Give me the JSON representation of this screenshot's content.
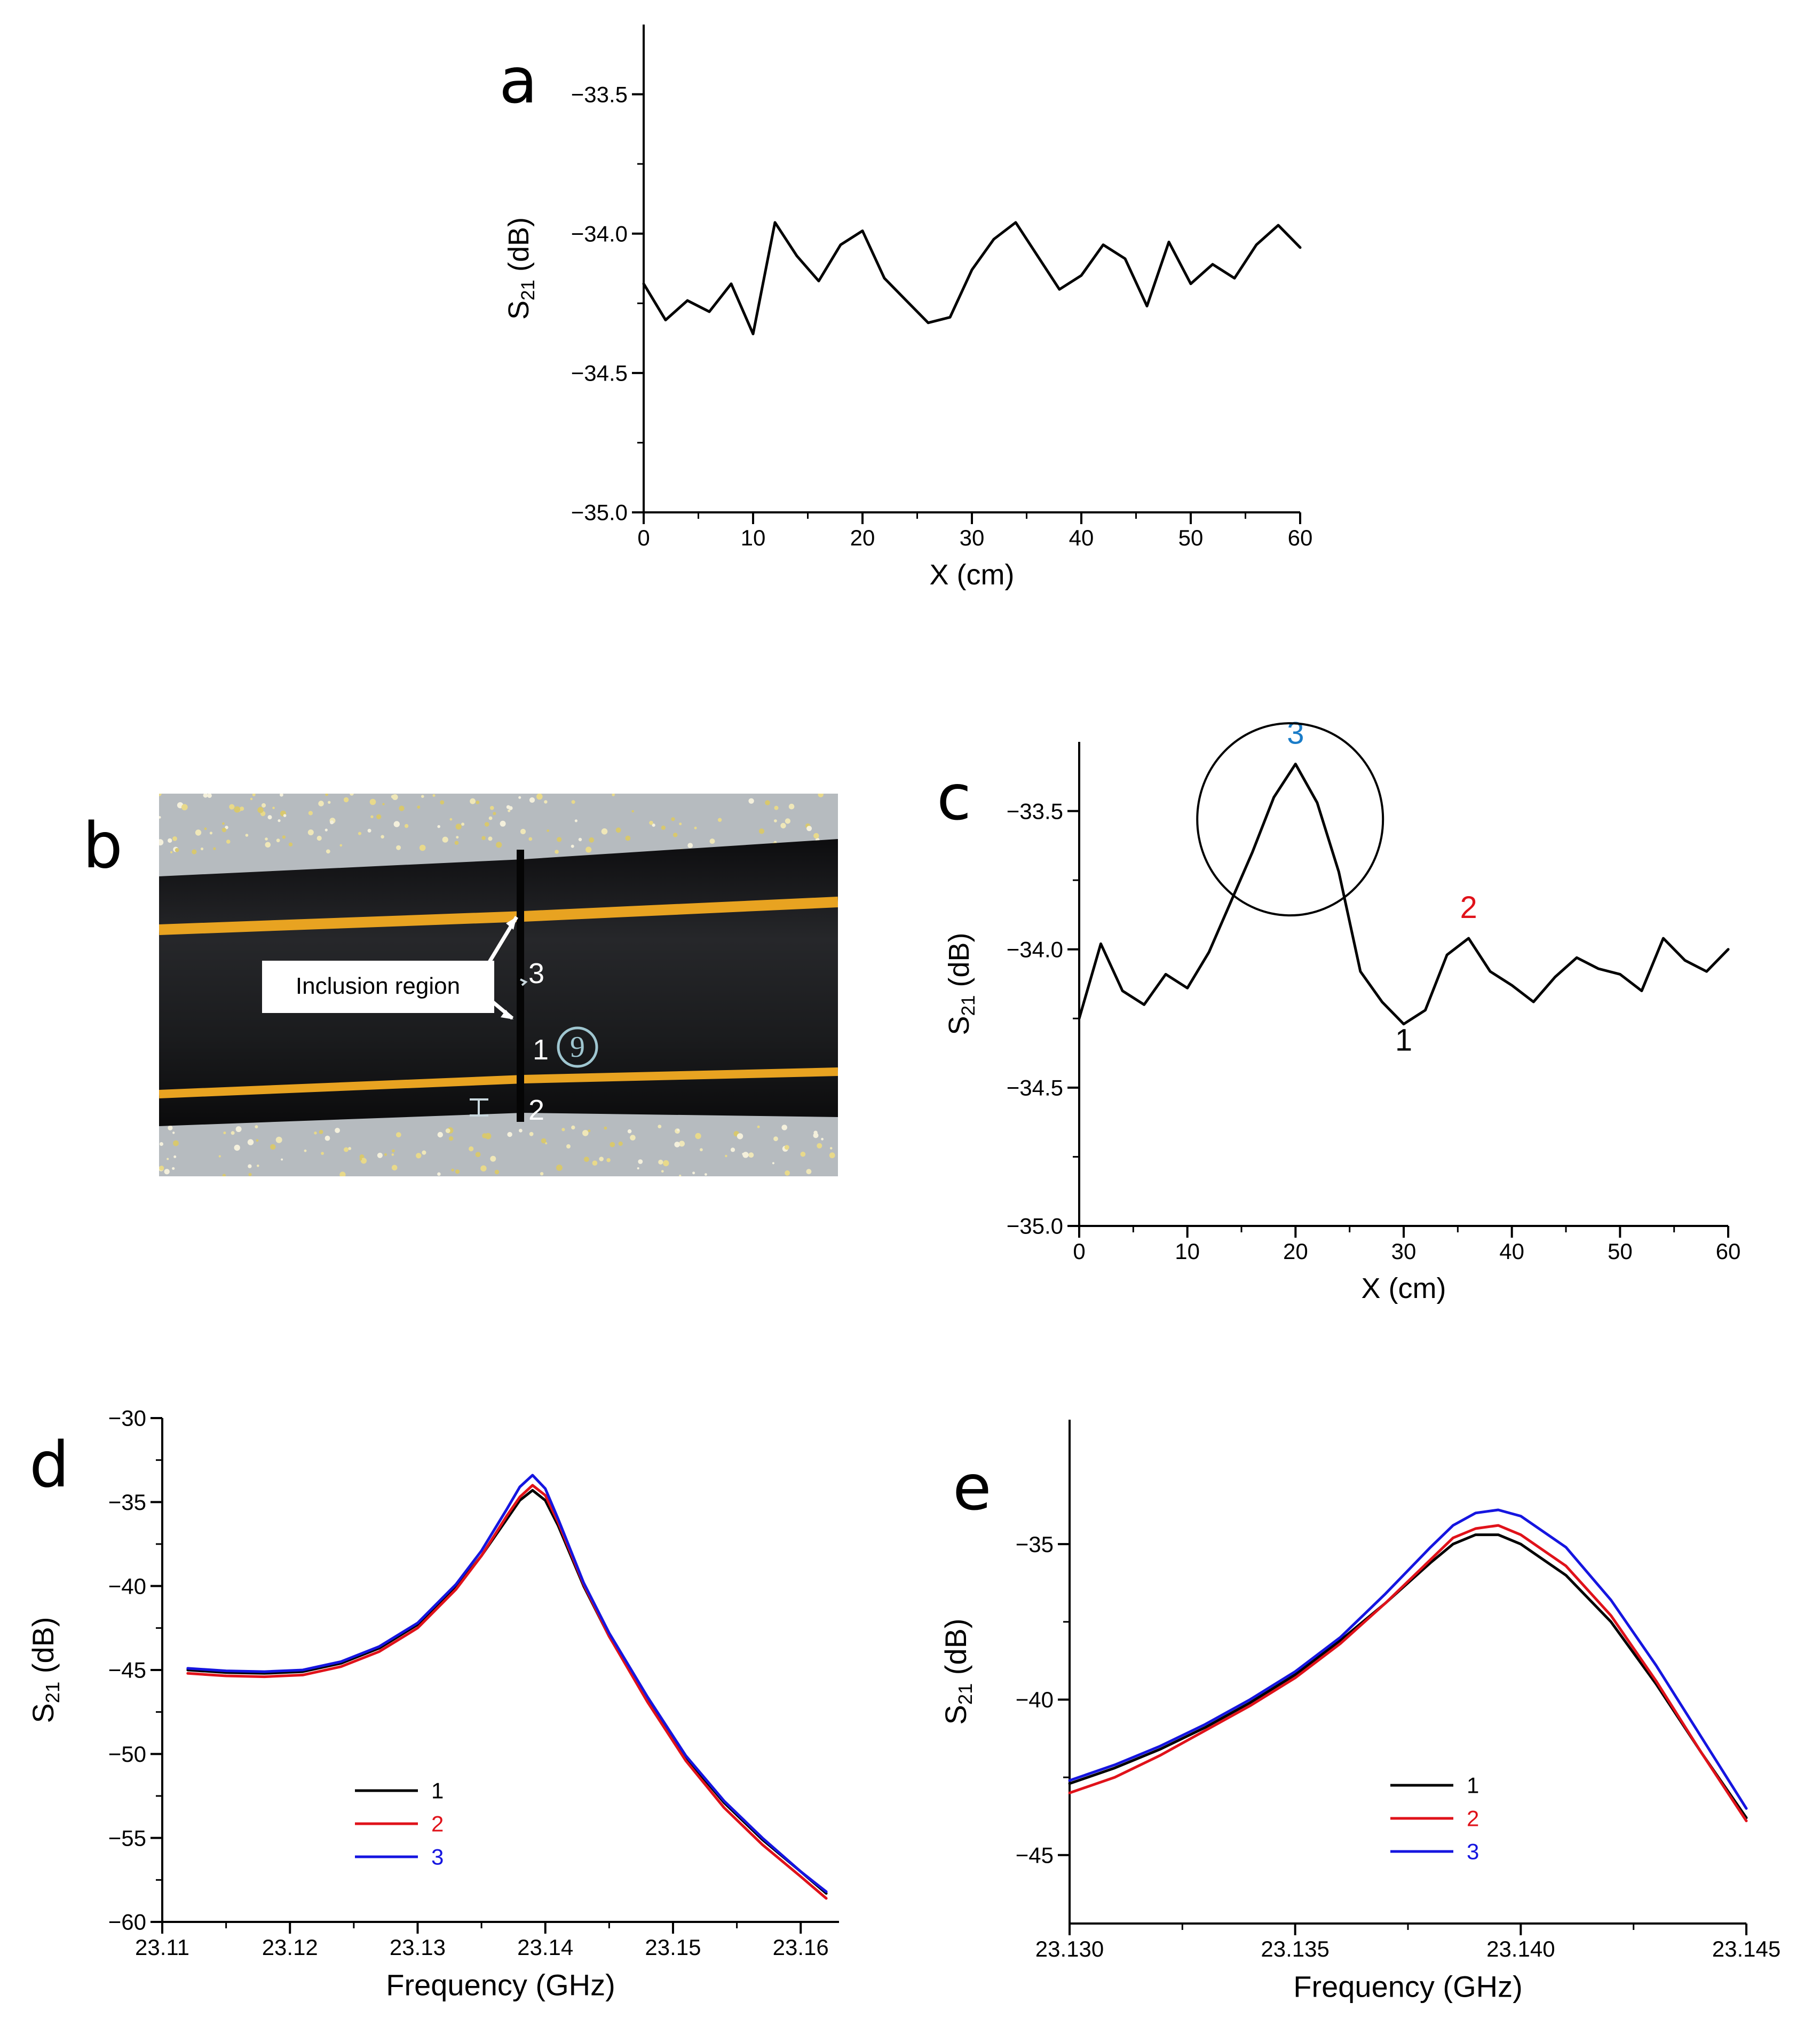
{
  "panels": {
    "a": {
      "letter": "a",
      "chart_data": {
        "type": "line",
        "xlabel": "X (cm)",
        "ylabel": "S21 (dB)",
        "xlim": [
          0,
          60
        ],
        "ylim": [
          -35.0,
          -33.25
        ],
        "x_ticks": [
          0,
          10,
          20,
          30,
          40,
          50,
          60
        ],
        "x_tick_labels": [
          "0",
          "10",
          "20",
          "30",
          "40",
          "50",
          "60"
        ],
        "y_ticks": [
          -35.0,
          -34.5,
          -34.0,
          -33.5
        ],
        "y_tick_labels": [
          "−35.0",
          "−34.5",
          "−34.0",
          "−33.5"
        ],
        "series": [
          {
            "color": "#000000",
            "x": [
              0,
              2,
              4,
              6,
              8,
              10,
              12,
              14,
              16,
              18,
              20,
              22,
              24,
              26,
              28,
              30,
              32,
              34,
              36,
              38,
              40,
              42,
              44,
              46,
              48,
              50,
              52,
              54,
              56,
              58,
              60
            ],
            "y": [
              -34.18,
              -34.31,
              -34.24,
              -34.28,
              -34.18,
              -34.36,
              -33.96,
              -34.08,
              -34.17,
              -34.04,
              -33.99,
              -34.16,
              -34.24,
              -34.32,
              -34.3,
              -34.13,
              -34.02,
              -33.96,
              -34.08,
              -34.2,
              -34.15,
              -34.04,
              -34.09,
              -34.26,
              -34.03,
              -34.18,
              -34.11,
              -34.16,
              -34.04,
              -33.97,
              -34.05
            ]
          }
        ]
      }
    },
    "b": {
      "letter": "b",
      "callout": "Inclusion region",
      "marks": [
        "3",
        "1",
        "2"
      ],
      "handwritten": "9",
      "colors": {
        "pipe": "#1c1c1e",
        "stripe": "#e8a321",
        "floor": "#b4b9be"
      }
    },
    "c": {
      "letter": "c",
      "chart_data": {
        "type": "line",
        "xlabel": "X (cm)",
        "ylabel": "S21 (dB)",
        "xlim": [
          0,
          60
        ],
        "ylim": [
          -35.0,
          -33.25
        ],
        "x_ticks": [
          0,
          10,
          20,
          30,
          40,
          50,
          60
        ],
        "x_tick_labels": [
          "0",
          "10",
          "20",
          "30",
          "40",
          "50",
          "60"
        ],
        "y_ticks": [
          -35.0,
          -34.5,
          -34.0,
          -33.5
        ],
        "y_tick_labels": [
          "−35.0",
          "−34.5",
          "−34.0",
          "−33.5"
        ],
        "series": [
          {
            "color": "#000000",
            "x": [
              0,
              2,
              4,
              6,
              8,
              10,
              12,
              14,
              16,
              18,
              20,
              22,
              24,
              26,
              28,
              30,
              32,
              34,
              36,
              38,
              40,
              42,
              44,
              46,
              48,
              50,
              52,
              54,
              56,
              58,
              60
            ],
            "y": [
              -34.25,
              -33.98,
              -34.15,
              -34.2,
              -34.09,
              -34.14,
              -34.01,
              -33.83,
              -33.65,
              -33.45,
              -33.33,
              -33.47,
              -33.72,
              -34.08,
              -34.19,
              -34.27,
              -34.22,
              -34.02,
              -33.96,
              -34.08,
              -34.13,
              -34.19,
              -34.1,
              -34.03,
              -34.07,
              -34.09,
              -34.15,
              -33.96,
              -34.04,
              -34.08,
              -34.0
            ]
          }
        ],
        "annotations": [
          {
            "text": "3",
            "x": 20,
            "y": -33.33,
            "color": "#1a7cc8"
          },
          {
            "text": "2",
            "x": 36,
            "y": -33.96,
            "color": "#e0121a"
          },
          {
            "text": "1",
            "x": 30,
            "y": -34.27,
            "color": "#000000"
          }
        ],
        "ellipse_center": [
          19.5,
          -33.53
        ]
      }
    },
    "d": {
      "letter": "d",
      "chart_data": {
        "type": "line",
        "xlabel": "Frequency (GHz)",
        "ylabel": "S21 (dB)",
        "xlim": [
          23.11,
          23.163
        ],
        "ylim": [
          -60,
          -30
        ],
        "x_ticks": [
          23.11,
          23.12,
          23.13,
          23.14,
          23.15,
          23.16
        ],
        "x_tick_labels": [
          "23.11",
          "23.12",
          "23.13",
          "23.14",
          "23.15",
          "23.16"
        ],
        "y_ticks": [
          -60,
          -55,
          -50,
          -45,
          -40,
          -35,
          -30
        ],
        "y_tick_labels": [
          "−60",
          "−55",
          "−50",
          "−45",
          "−40",
          "−35",
          "−30"
        ],
        "legend_position": "bottom-left",
        "series": [
          {
            "name": "1",
            "color": "#000000",
            "x": [
              23.112,
              23.115,
              23.118,
              23.121,
              23.124,
              23.127,
              23.13,
              23.133,
              23.135,
              23.137,
              23.138,
              23.139,
              23.14,
              23.141,
              23.143,
              23.145,
              23.148,
              23.151,
              23.154,
              23.157,
              23.16,
              23.162
            ],
            "y": [
              -45.0,
              -45.15,
              -45.2,
              -45.1,
              -44.6,
              -43.7,
              -42.3,
              -40.1,
              -38.2,
              -36.0,
              -34.9,
              -34.3,
              -34.9,
              -36.4,
              -40.0,
              -43.0,
              -46.8,
              -50.2,
              -52.9,
              -55.1,
              -57.0,
              -58.3
            ]
          },
          {
            "name": "2",
            "color": "#e0121a",
            "x": [
              23.112,
              23.115,
              23.118,
              23.121,
              23.124,
              23.127,
              23.13,
              23.133,
              23.135,
              23.137,
              23.138,
              23.139,
              23.14,
              23.141,
              23.143,
              23.145,
              23.148,
              23.151,
              23.154,
              23.157,
              23.16,
              23.162
            ],
            "y": [
              -45.2,
              -45.35,
              -45.4,
              -45.3,
              -44.8,
              -43.9,
              -42.5,
              -40.2,
              -38.2,
              -35.8,
              -34.7,
              -34.0,
              -34.6,
              -36.2,
              -39.9,
              -43.0,
              -46.9,
              -50.4,
              -53.2,
              -55.4,
              -57.3,
              -58.6
            ]
          },
          {
            "name": "3",
            "color": "#1515e0",
            "x": [
              23.112,
              23.115,
              23.118,
              23.121,
              23.124,
              23.127,
              23.13,
              23.133,
              23.135,
              23.137,
              23.138,
              23.139,
              23.14,
              23.141,
              23.143,
              23.145,
              23.148,
              23.151,
              23.154,
              23.157,
              23.16,
              23.162
            ],
            "y": [
              -44.9,
              -45.05,
              -45.1,
              -45.0,
              -44.5,
              -43.6,
              -42.2,
              -39.9,
              -37.9,
              -35.4,
              -34.1,
              -33.4,
              -34.2,
              -36.0,
              -39.8,
              -42.8,
              -46.6,
              -50.1,
              -52.8,
              -55.0,
              -57.0,
              -58.2
            ]
          }
        ]
      }
    },
    "e": {
      "letter": "e",
      "chart_data": {
        "type": "line",
        "xlabel": "Frequency (GHz)",
        "ylabel": "S21 (dB)",
        "xlim": [
          23.13,
          23.145
        ],
        "ylim": [
          -47.2,
          -31.0
        ],
        "x_ticks": [
          23.13,
          23.135,
          23.14,
          23.145
        ],
        "x_tick_labels": [
          "23.130",
          "23.135",
          "23.140",
          "23.145"
        ],
        "y_ticks": [
          -45,
          -40,
          -35
        ],
        "y_tick_labels": [
          "−45",
          "−40",
          "−35"
        ],
        "legend_position": "bottom-center",
        "series": [
          {
            "name": "1",
            "color": "#000000",
            "x": [
              23.13,
              23.131,
              23.132,
              23.133,
              23.134,
              23.135,
              23.136,
              23.137,
              23.138,
              23.1385,
              23.139,
              23.1395,
              23.14,
              23.141,
              23.142,
              23.143,
              23.144,
              23.145
            ],
            "y": [
              -42.7,
              -42.2,
              -41.6,
              -40.9,
              -40.1,
              -39.2,
              -38.1,
              -36.9,
              -35.6,
              -35.0,
              -34.7,
              -34.7,
              -35.0,
              -36.0,
              -37.5,
              -39.5,
              -41.7,
              -43.8
            ]
          },
          {
            "name": "2",
            "color": "#e0121a",
            "x": [
              23.13,
              23.131,
              23.132,
              23.133,
              23.134,
              23.135,
              23.136,
              23.137,
              23.138,
              23.1385,
              23.139,
              23.1395,
              23.14,
              23.141,
              23.142,
              23.143,
              23.144,
              23.145
            ],
            "y": [
              -43.0,
              -42.5,
              -41.8,
              -41.0,
              -40.2,
              -39.3,
              -38.2,
              -36.9,
              -35.5,
              -34.8,
              -34.5,
              -34.4,
              -34.7,
              -35.7,
              -37.3,
              -39.4,
              -41.7,
              -43.9
            ]
          },
          {
            "name": "3",
            "color": "#1515e0",
            "x": [
              23.13,
              23.131,
              23.132,
              23.133,
              23.134,
              23.135,
              23.136,
              23.137,
              23.138,
              23.1385,
              23.139,
              23.1395,
              23.14,
              23.141,
              23.142,
              23.143,
              23.144,
              23.145
            ],
            "y": [
              -42.6,
              -42.1,
              -41.5,
              -40.8,
              -40.0,
              -39.1,
              -38.0,
              -36.6,
              -35.1,
              -34.4,
              -34.0,
              -33.9,
              -34.1,
              -35.1,
              -36.8,
              -38.9,
              -41.2,
              -43.5
            ]
          }
        ]
      }
    }
  }
}
